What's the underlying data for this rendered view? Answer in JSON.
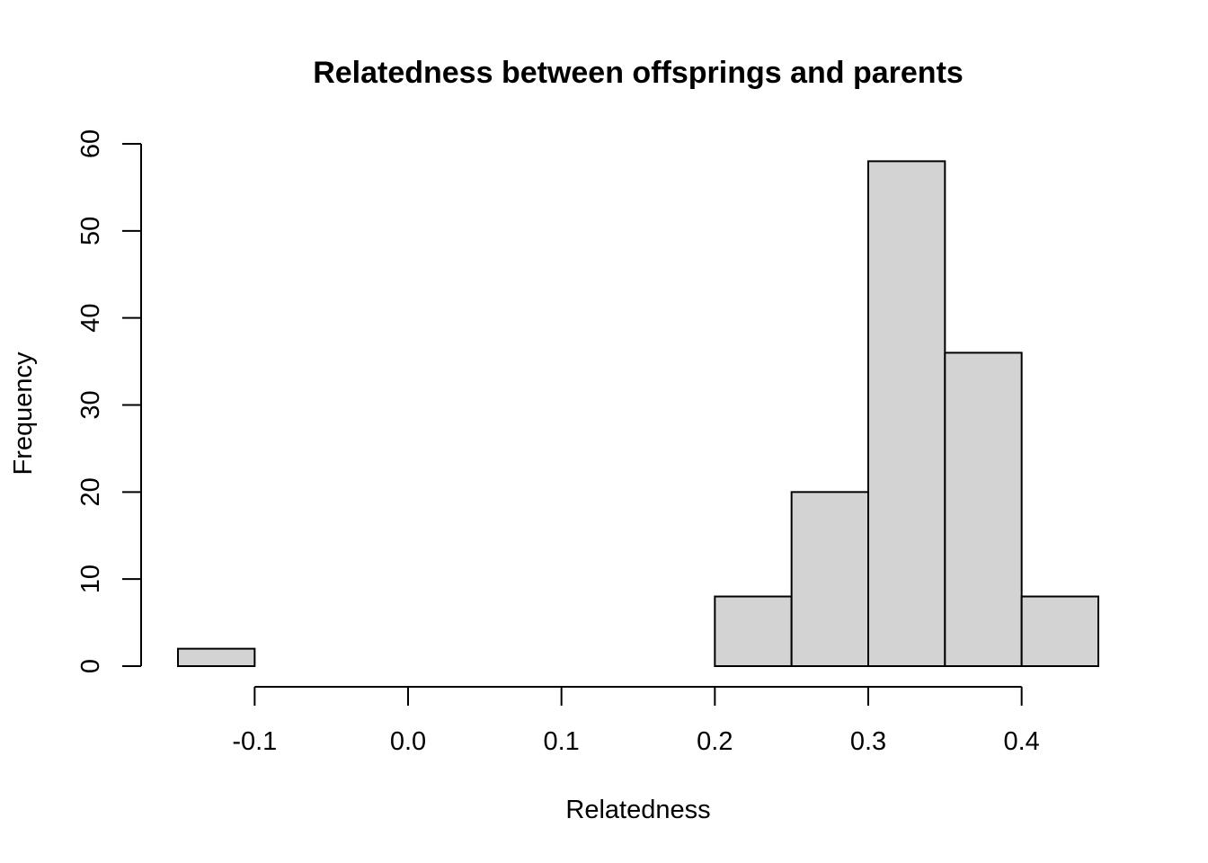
{
  "chart_data": {
    "type": "histogram",
    "title": "Relatedness between offsprings and parents",
    "xlabel": "Relatedness",
    "ylabel": "Frequency",
    "bin_width": 0.05,
    "bins": [
      {
        "start": -0.15,
        "end": -0.1,
        "count": 2
      },
      {
        "start": -0.1,
        "end": -0.05,
        "count": 0
      },
      {
        "start": -0.05,
        "end": 0.0,
        "count": 0
      },
      {
        "start": 0.0,
        "end": 0.05,
        "count": 0
      },
      {
        "start": 0.05,
        "end": 0.1,
        "count": 0
      },
      {
        "start": 0.1,
        "end": 0.15,
        "count": 0
      },
      {
        "start": 0.15,
        "end": 0.2,
        "count": 0
      },
      {
        "start": 0.2,
        "end": 0.25,
        "count": 8
      },
      {
        "start": 0.25,
        "end": 0.3,
        "count": 20
      },
      {
        "start": 0.3,
        "end": 0.35,
        "count": 58
      },
      {
        "start": 0.35,
        "end": 0.4,
        "count": 36
      },
      {
        "start": 0.4,
        "end": 0.45,
        "count": 8
      }
    ],
    "xticks": [
      -0.1,
      0.0,
      0.1,
      0.2,
      0.3,
      0.4
    ],
    "xtick_labels": [
      "-0.1",
      "0.0",
      "0.1",
      "0.2",
      "0.3",
      "0.4"
    ],
    "yticks": [
      0,
      10,
      20,
      30,
      40,
      50,
      60
    ],
    "ytick_labels": [
      "0",
      "10",
      "20",
      "30",
      "40",
      "50",
      "60"
    ],
    "xlim": [
      -0.15,
      0.45
    ],
    "ylim": [
      0,
      60
    ],
    "bar_color": "#d3d3d3",
    "edge_color": "#000000",
    "grid": false,
    "legend": "none"
  }
}
